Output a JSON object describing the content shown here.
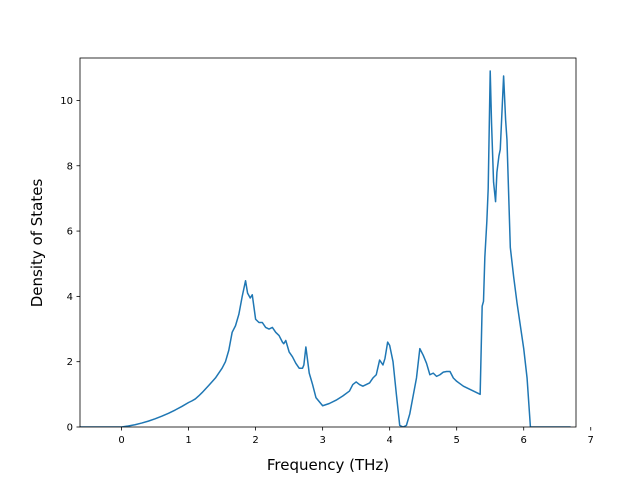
{
  "chart_data": {
    "type": "line",
    "title": "",
    "xlabel": "Frequency (THz)",
    "ylabel": "Density of States",
    "xlim": [
      -0.62,
      6.78
    ],
    "ylim": [
      0,
      11.3
    ],
    "xticks": [
      0,
      1,
      2,
      3,
      4,
      5,
      6,
      7
    ],
    "yticks": [
      0,
      2,
      4,
      6,
      8,
      10
    ],
    "grid": false,
    "legend": "none",
    "series": [
      {
        "color": "#1f77b4",
        "x": [
          -0.62,
          0.0,
          0.1,
          0.2,
          0.3,
          0.4,
          0.5,
          0.6,
          0.7,
          0.8,
          0.9,
          1.0,
          1.05,
          1.1,
          1.15,
          1.2,
          1.3,
          1.4,
          1.5,
          1.55,
          1.6,
          1.65,
          1.7,
          1.75,
          1.8,
          1.85,
          1.88,
          1.92,
          1.95,
          2.0,
          2.05,
          2.1,
          2.15,
          2.2,
          2.25,
          2.3,
          2.35,
          2.4,
          2.42,
          2.45,
          2.5,
          2.55,
          2.6,
          2.65,
          2.7,
          2.72,
          2.75,
          2.8,
          2.85,
          2.9,
          3.0,
          3.1,
          3.2,
          3.3,
          3.4,
          3.45,
          3.5,
          3.55,
          3.6,
          3.7,
          3.75,
          3.8,
          3.85,
          3.9,
          3.93,
          3.97,
          4.0,
          4.05,
          4.1,
          4.15,
          4.2,
          4.25,
          4.3,
          4.35,
          4.4,
          4.45,
          4.5,
          4.55,
          4.6,
          4.65,
          4.7,
          4.75,
          4.8,
          4.85,
          4.9,
          4.95,
          5.0,
          5.1,
          5.2,
          5.3,
          5.35,
          5.38,
          5.4,
          5.42,
          5.45,
          5.47,
          5.5,
          5.52,
          5.55,
          5.58,
          5.6,
          5.63,
          5.65,
          5.7,
          5.73,
          5.75,
          5.8,
          5.85,
          5.9,
          6.0,
          6.05,
          6.1,
          6.15,
          6.2,
          6.3,
          6.5,
          6.7
        ],
        "y": [
          0.0,
          0.0,
          0.03,
          0.07,
          0.12,
          0.18,
          0.25,
          0.33,
          0.42,
          0.52,
          0.63,
          0.75,
          0.8,
          0.86,
          0.95,
          1.05,
          1.27,
          1.5,
          1.8,
          2.0,
          2.35,
          2.9,
          3.1,
          3.45,
          4.0,
          4.48,
          4.1,
          3.95,
          4.05,
          3.3,
          3.2,
          3.2,
          3.05,
          3.0,
          3.05,
          2.9,
          2.8,
          2.6,
          2.55,
          2.65,
          2.3,
          2.15,
          1.95,
          1.8,
          1.8,
          1.9,
          2.45,
          1.65,
          1.3,
          0.9,
          0.65,
          0.72,
          0.82,
          0.95,
          1.1,
          1.3,
          1.38,
          1.3,
          1.25,
          1.35,
          1.5,
          1.6,
          2.05,
          1.9,
          2.1,
          2.6,
          2.5,
          2.0,
          1.0,
          0.05,
          0.0,
          0.05,
          0.4,
          0.95,
          1.5,
          2.4,
          2.2,
          1.95,
          1.6,
          1.65,
          1.55,
          1.6,
          1.68,
          1.7,
          1.7,
          1.5,
          1.4,
          1.25,
          1.15,
          1.05,
          1.0,
          3.7,
          3.85,
          5.2,
          6.3,
          7.3,
          10.9,
          9.3,
          7.5,
          6.9,
          7.8,
          8.3,
          8.5,
          10.75,
          9.4,
          8.8,
          5.5,
          4.6,
          3.8,
          2.4,
          1.5,
          0.0,
          0.0,
          0.0,
          0.0,
          0.0,
          0.0
        ]
      }
    ]
  }
}
